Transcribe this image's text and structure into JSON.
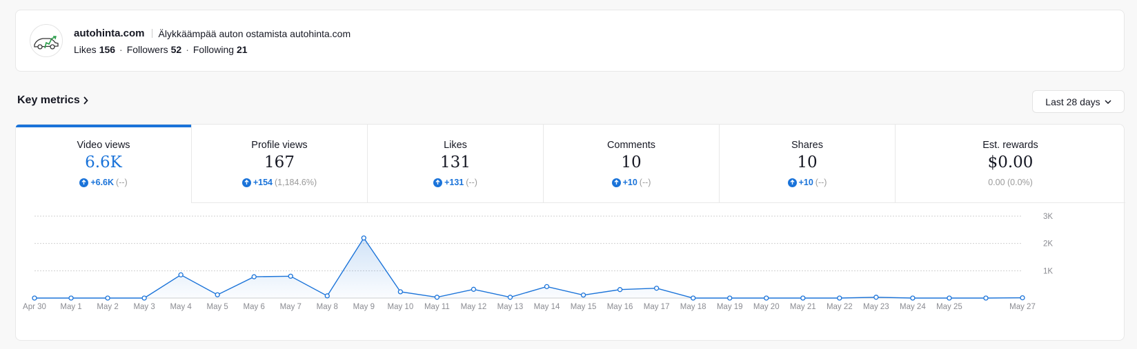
{
  "profile": {
    "name": "autohinta.com",
    "bio": "Älykkäämpää auton ostamista autohinta.com",
    "stats": [
      {
        "label": "Likes",
        "value": "156"
      },
      {
        "label": "Followers",
        "value": "52"
      },
      {
        "label": "Following",
        "value": "21"
      }
    ]
  },
  "section": {
    "title": "Key metrics"
  },
  "range": {
    "label": "Last 28 days"
  },
  "accent": "#1a73d9",
  "tabs": [
    {
      "label": "Video views",
      "value": "6.6K",
      "change": "+6.6K",
      "pct": "(--)",
      "active": true
    },
    {
      "label": "Profile views",
      "value": "167",
      "change": "+154",
      "pct": "(1,184.6%)"
    },
    {
      "label": "Likes",
      "value": "131",
      "change": "+131",
      "pct": "(--)"
    },
    {
      "label": "Comments",
      "value": "10",
      "change": "+10",
      "pct": "(--)"
    },
    {
      "label": "Shares",
      "value": "10",
      "change": "+10",
      "pct": "(--)"
    },
    {
      "label": "Est. rewards",
      "value": "$0.00",
      "neutral": "0.00 (0.0%)"
    }
  ],
  "chart_data": {
    "type": "area",
    "series": [
      {
        "x": [
          "Apr 30",
          "May 1",
          "May 2",
          "May 3",
          "May 4",
          "May 5",
          "May 6",
          "May 7",
          "May 8",
          "May 9",
          "May 10",
          "May 11",
          "May 12",
          "May 13",
          "May 14",
          "May 15",
          "May 16",
          "May 17",
          "May 18",
          "May 19",
          "May 20",
          "May 21",
          "May 22",
          "May 23",
          "May 24",
          "May 25",
          "May 26",
          "May 27"
        ],
        "values": [
          0,
          0,
          0,
          0,
          850,
          120,
          780,
          800,
          80,
          2200,
          230,
          30,
          320,
          30,
          420,
          110,
          310,
          360,
          0,
          0,
          0,
          0,
          0,
          30,
          0,
          0,
          0,
          10
        ]
      }
    ],
    "x_tick_labels": [
      "Apr 30",
      "May 1",
      "May 2",
      "May 3",
      "May 4",
      "May 5",
      "May 6",
      "May 7",
      "May 8",
      "May 9",
      "May 10",
      "May 11",
      "May 12",
      "May 13",
      "May 14",
      "May 15",
      "May 16",
      "May 17",
      "May 18",
      "May 19",
      "May 20",
      "May 21",
      "May 22",
      "May 23",
      "May 24",
      "May 25",
      "",
      "May 27"
    ],
    "y_ticks": [
      "1K",
      "2K",
      "3K"
    ],
    "ylim": [
      0,
      3000
    ],
    "grid": true
  }
}
